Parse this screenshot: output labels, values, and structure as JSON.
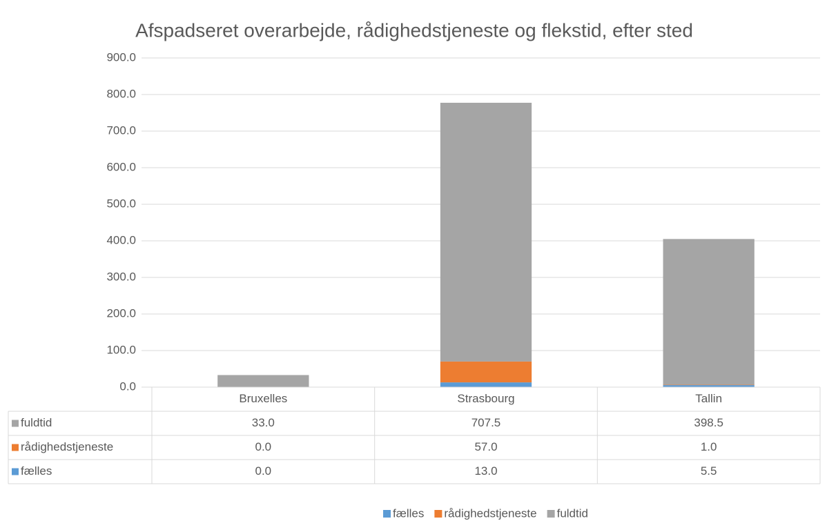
{
  "chart_data": {
    "type": "stacked_bar",
    "title": "Afspadseret overarbejde, rådighedstjeneste og flekstid, efter sted",
    "categories": [
      "Bruxelles",
      "Strasbourg",
      "Tallin"
    ],
    "series": [
      {
        "name": "fælles",
        "color": "#5b9bd5",
        "values": [
          0,
          13,
          5.5
        ],
        "value_labels": [
          "0.0",
          "13.0",
          "5.5"
        ]
      },
      {
        "name": "rådighedstjeneste",
        "color": "#ed7d31",
        "values": [
          0,
          57,
          1
        ],
        "value_labels": [
          "0.0",
          "57.0",
          "1.0"
        ]
      },
      {
        "name": "fuldtid",
        "color": "#a5a5a5",
        "values": [
          33,
          707.5,
          398.5
        ],
        "value_labels": [
          "33.0",
          "707.5",
          "398.5"
        ]
      }
    ],
    "ylim": [
      0,
      900
    ],
    "yticks": [
      {
        "value": 0,
        "label": "0.0"
      },
      {
        "value": 100,
        "label": "100.0"
      },
      {
        "value": 200,
        "label": "200.0"
      },
      {
        "value": 300,
        "label": "300.0"
      },
      {
        "value": 400,
        "label": "400.0"
      },
      {
        "value": 500,
        "label": "500.0"
      },
      {
        "value": 600,
        "label": "600.0"
      },
      {
        "value": 700,
        "label": "700.0"
      },
      {
        "value": 800,
        "label": "800.0"
      },
      {
        "value": 900,
        "label": "900.0"
      }
    ],
    "grid": true,
    "legend": "bottom",
    "data_table": true
  }
}
